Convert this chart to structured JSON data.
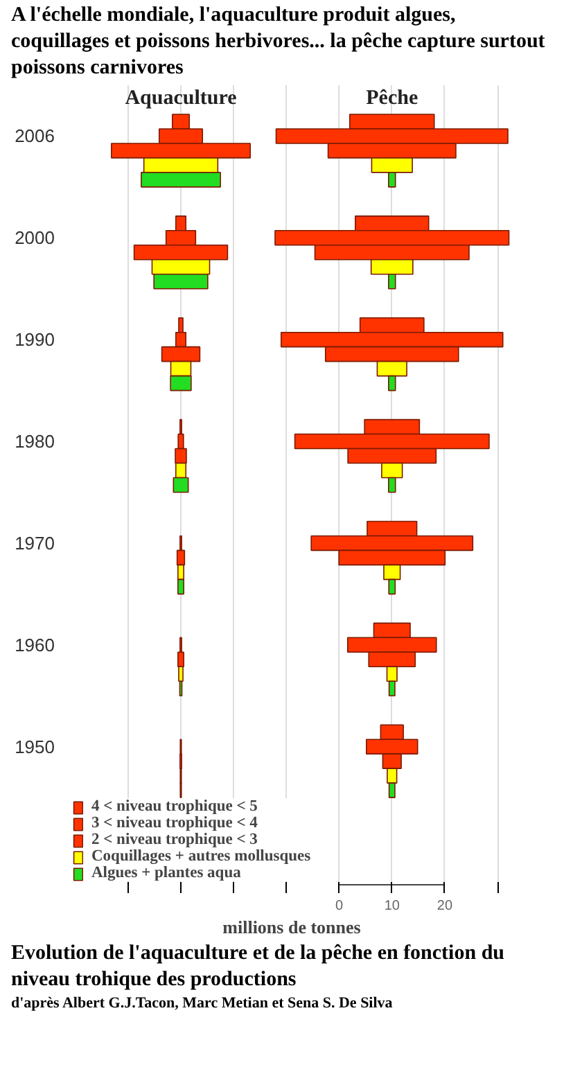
{
  "chart_data": {
    "type": "bar",
    "orientation": "horizontal",
    "title": "A l'échelle mondiale, l'aquaculture produit algues, coquillages et poissons herbivores... la pêche capture surtout poissons carnivores",
    "xlabel": "millions de tonnes",
    "categories": [
      null,
      null,
      null,
      "2006",
      null,
      null,
      null,
      null,
      null,
      null,
      "2000",
      null,
      null,
      null,
      null,
      null,
      null,
      "1990",
      null,
      null,
      null,
      null,
      null,
      null,
      "1980",
      null,
      null,
      null,
      null,
      null,
      null,
      "1970",
      null,
      null,
      null,
      null,
      null,
      null,
      "1960",
      null,
      null,
      null,
      null,
      null,
      null,
      "1950",
      null,
      null,
      null,
      null,
      null,
      null,
      null,
      null,
      null
    ],
    "series": [
      {
        "name": "4 < niveau trophique < 5",
        "color": "#ff3300",
        "values": [
          null,
          null,
          3.2,
          null,
          null,
          null,
          null,
          null,
          null,
          1.9,
          null,
          null,
          null,
          null,
          null,
          null,
          0.8,
          null,
          null,
          null,
          null,
          null,
          null,
          0.3,
          null,
          null,
          null,
          null,
          null,
          null,
          null,
          null,
          null,
          null,
          null,
          null,
          null,
          null,
          null,
          null,
          null,
          null,
          null,
          null,
          null,
          null,
          null,
          null,
          null,
          null,
          null,
          null,
          null,
          null,
          null
        ],
        "base": [
          null,
          null,
          -31.6,
          null,
          null,
          null,
          null,
          null,
          null,
          -30.95,
          null,
          null,
          null,
          null,
          null,
          null,
          -30.4,
          null,
          null,
          null,
          null,
          null,
          null,
          -30.15,
          null,
          null,
          null,
          null,
          null,
          null,
          null,
          null,
          null,
          null,
          null,
          null,
          null,
          null,
          null,
          null,
          null,
          null,
          null,
          null,
          null,
          null,
          null,
          null,
          null,
          null,
          null,
          null,
          null,
          null,
          null
        ]
      },
      {
        "name": "3 < niveau trophique < 4",
        "color": "#ff3300",
        "values": [
          null,
          null,
          null,
          8.2,
          null,
          null,
          null,
          null,
          null,
          null,
          5.6,
          null,
          null,
          null,
          null,
          null,
          null,
          1.9,
          null,
          null,
          null,
          null,
          null,
          null,
          1.0,
          null,
          null,
          null,
          null,
          null,
          null,
          0.3,
          null,
          null,
          null,
          null,
          null,
          null,
          0.3,
          null,
          null,
          null,
          null,
          null,
          null,
          0.2,
          null,
          null,
          null,
          null,
          null,
          null,
          null,
          null,
          null
        ],
        "base": [
          null,
          null,
          null,
          -34.1,
          null,
          null,
          null,
          null,
          null,
          null,
          -32.8,
          null,
          null,
          null,
          null,
          null,
          null,
          -30.95,
          null,
          null,
          null,
          null,
          null,
          null,
          -30.5,
          null,
          null,
          null,
          null,
          null,
          null,
          -30.15,
          null,
          null,
          null,
          null,
          null,
          null,
          -30.15,
          null,
          null,
          null,
          null,
          null,
          null,
          -30.1,
          null,
          null,
          null,
          null,
          null,
          null,
          null,
          null,
          null
        ]
      },
      {
        "name": "2 < niveau trophique < 3",
        "color": "#ff3300",
        "values": [
          null,
          null,
          null,
          null,
          26.3,
          null,
          null,
          null,
          null,
          null,
          null,
          17.7,
          null,
          null,
          null,
          null,
          null,
          null,
          7.2,
          null,
          null,
          null,
          null,
          null,
          null,
          2.1,
          null,
          null,
          null,
          null,
          null,
          null,
          1.4,
          null,
          null,
          null,
          null,
          null,
          null,
          1.1,
          null,
          null,
          null,
          null,
          null,
          null,
          0.3,
          null,
          null,
          null,
          null,
          null,
          null,
          null,
          null
        ],
        "base": [
          null,
          null,
          null,
          null,
          -43.15,
          null,
          null,
          null,
          null,
          null,
          null,
          -38.85,
          null,
          null,
          null,
          null,
          null,
          null,
          -33.6,
          null,
          null,
          null,
          null,
          null,
          null,
          -31.05,
          null,
          null,
          null,
          null,
          null,
          null,
          -30.7,
          null,
          null,
          null,
          null,
          null,
          null,
          -30.55,
          null,
          null,
          null,
          null,
          null,
          null,
          -30.15,
          null,
          null,
          null,
          null,
          null,
          null,
          null,
          null
        ]
      },
      {
        "name": "Coquillages + autres mollusques",
        "color": "#ffff00",
        "values": [
          null,
          null,
          null,
          null,
          null,
          14.0,
          null,
          null,
          null,
          null,
          null,
          null,
          10.9,
          null,
          null,
          null,
          null,
          null,
          null,
          3.8,
          null,
          null,
          null,
          null,
          null,
          null,
          1.9,
          null,
          null,
          null,
          null,
          null,
          null,
          1.1,
          null,
          null,
          null,
          null,
          null,
          null,
          0.8,
          null,
          null,
          null,
          null,
          null,
          null,
          0.2,
          null,
          null,
          null,
          null,
          null,
          null,
          null
        ],
        "base": [
          null,
          null,
          null,
          null,
          null,
          -37.0,
          null,
          null,
          null,
          null,
          null,
          null,
          -35.45,
          null,
          null,
          null,
          null,
          null,
          null,
          -31.9,
          null,
          null,
          null,
          null,
          null,
          null,
          -30.95,
          null,
          null,
          null,
          null,
          null,
          null,
          -30.55,
          null,
          null,
          null,
          null,
          null,
          null,
          -30.4,
          null,
          null,
          null,
          null,
          null,
          null,
          -30.1,
          null,
          null,
          null,
          null,
          null,
          null,
          null
        ]
      },
      {
        "name": "Algues + plantes aqua",
        "color": "#22dd22",
        "values": [
          null,
          null,
          null,
          null,
          null,
          null,
          15.0,
          null,
          null,
          null,
          null,
          null,
          null,
          10.2,
          null,
          null,
          null,
          null,
          null,
          null,
          3.9,
          null,
          null,
          null,
          null,
          null,
          null,
          2.8,
          null,
          null,
          null,
          null,
          null,
          null,
          1.1,
          null,
          null,
          null,
          null,
          null,
          null,
          0.4,
          null,
          null,
          null,
          null,
          null,
          null,
          0.2,
          null,
          null,
          null,
          null,
          null,
          null
        ],
        "base": [
          null,
          null,
          null,
          null,
          null,
          null,
          -37.5,
          null,
          null,
          null,
          null,
          null,
          null,
          -35.1,
          null,
          null,
          null,
          null,
          null,
          null,
          -31.95,
          null,
          null,
          null,
          null,
          null,
          null,
          -31.4,
          null,
          null,
          null,
          null,
          null,
          null,
          -30.55,
          null,
          null,
          null,
          null,
          null,
          null,
          -30.2,
          null,
          null,
          null,
          null,
          null,
          null,
          -30.1,
          null,
          null,
          null,
          null,
          null,
          null
        ]
      },
      {
        "color": "#ff3300",
        "values": [
          null,
          null,
          16.0,
          null,
          null,
          null,
          null,
          null,
          null,
          13.9,
          null,
          null,
          null,
          null,
          null,
          null,
          12.1,
          null,
          null,
          null,
          null,
          null,
          null,
          10.4,
          null,
          null,
          null,
          null,
          null,
          null,
          9.4,
          null,
          null,
          null,
          null,
          null,
          null,
          6.9,
          null,
          null,
          null,
          null,
          null,
          null,
          4.3,
          null,
          null,
          null,
          null,
          null,
          null,
          null,
          null,
          null,
          null
        ],
        "base": [
          null,
          null,
          2.0,
          null,
          null,
          null,
          null,
          null,
          null,
          3.05,
          null,
          null,
          null,
          null,
          null,
          null,
          3.95,
          null,
          null,
          null,
          null,
          null,
          null,
          4.8,
          null,
          null,
          null,
          null,
          null,
          null,
          5.3,
          null,
          null,
          null,
          null,
          null,
          null,
          6.55,
          null,
          null,
          null,
          null,
          null,
          null,
          7.85,
          null,
          null,
          null,
          null,
          null,
          null,
          null,
          null,
          null,
          null
        ]
      },
      {
        "color": "#ff3300",
        "values": [
          null,
          null,
          null,
          43.9,
          null,
          null,
          null,
          null,
          null,
          null,
          44.3,
          null,
          null,
          null,
          null,
          null,
          null,
          42.0,
          null,
          null,
          null,
          null,
          null,
          null,
          36.8,
          null,
          null,
          null,
          null,
          null,
          null,
          30.6,
          null,
          null,
          null,
          null,
          null,
          null,
          16.8,
          null,
          null,
          null,
          null,
          null,
          null,
          9.7,
          null,
          null,
          null,
          null,
          null,
          null,
          null,
          null,
          null
        ],
        "base": [
          null,
          null,
          null,
          -11.95,
          null,
          null,
          null,
          null,
          null,
          null,
          -12.15,
          null,
          null,
          null,
          null,
          null,
          null,
          -11.0,
          null,
          null,
          null,
          null,
          null,
          null,
          -8.4,
          null,
          null,
          null,
          null,
          null,
          null,
          -5.3,
          null,
          null,
          null,
          null,
          null,
          null,
          1.6,
          null,
          null,
          null,
          null,
          null,
          null,
          5.15,
          null,
          null,
          null,
          null,
          null,
          null,
          null,
          null,
          null
        ]
      },
      {
        "color": "#ff3300",
        "values": [
          null,
          null,
          null,
          null,
          24.2,
          null,
          null,
          null,
          null,
          null,
          null,
          29.2,
          null,
          null,
          null,
          null,
          null,
          null,
          25.2,
          null,
          null,
          null,
          null,
          null,
          null,
          16.7,
          null,
          null,
          null,
          null,
          null,
          null,
          20.1,
          null,
          null,
          null,
          null,
          null,
          null,
          8.8,
          null,
          null,
          null,
          null,
          null,
          null,
          3.5,
          null,
          null,
          null,
          null,
          null,
          null,
          null,
          null
        ],
        "base": [
          null,
          null,
          null,
          null,
          -2.1,
          null,
          null,
          null,
          null,
          null,
          null,
          -4.6,
          null,
          null,
          null,
          null,
          null,
          null,
          -2.6,
          null,
          null,
          null,
          null,
          null,
          null,
          1.65,
          null,
          null,
          null,
          null,
          null,
          null,
          -0.05,
          null,
          null,
          null,
          null,
          null,
          null,
          5.6,
          null,
          null,
          null,
          null,
          null,
          null,
          8.25,
          null,
          null,
          null,
          null,
          null,
          null,
          null,
          null
        ]
      },
      {
        "color": "#ffff00",
        "values": [
          null,
          null,
          null,
          null,
          null,
          7.7,
          null,
          null,
          null,
          null,
          null,
          null,
          7.9,
          null,
          null,
          null,
          null,
          null,
          null,
          5.6,
          null,
          null,
          null,
          null,
          null,
          null,
          3.9,
          null,
          null,
          null,
          null,
          null,
          null,
          3.1,
          null,
          null,
          null,
          null,
          null,
          null,
          1.9,
          null,
          null,
          null,
          null,
          null,
          null,
          1.8,
          null,
          null,
          null,
          null,
          null,
          null,
          null
        ],
        "base": [
          null,
          null,
          null,
          null,
          null,
          6.15,
          null,
          null,
          null,
          null,
          null,
          null,
          6.05,
          null,
          null,
          null,
          null,
          null,
          null,
          7.2,
          null,
          null,
          null,
          null,
          null,
          null,
          8.05,
          null,
          null,
          null,
          null,
          null,
          null,
          8.45,
          null,
          null,
          null,
          null,
          null,
          null,
          9.05,
          null,
          null,
          null,
          null,
          null,
          null,
          9.1,
          null,
          null,
          null,
          null,
          null,
          null,
          null
        ]
      },
      {
        "color": "#22dd22",
        "values": [
          null,
          null,
          null,
          null,
          null,
          null,
          1.3,
          null,
          null,
          null,
          null,
          null,
          null,
          1.3,
          null,
          null,
          null,
          null,
          null,
          null,
          1.3,
          null,
          null,
          null,
          null,
          null,
          null,
          1.3,
          null,
          null,
          null,
          null,
          null,
          null,
          1.2,
          null,
          null,
          null,
          null,
          null,
          null,
          1.1,
          null,
          null,
          null,
          null,
          null,
          null,
          1.1,
          null,
          null,
          null,
          null,
          null,
          null
        ],
        "base": [
          null,
          null,
          null,
          null,
          null,
          null,
          9.35,
          null,
          null,
          null,
          null,
          null,
          null,
          9.35,
          null,
          null,
          null,
          null,
          null,
          null,
          9.35,
          null,
          null,
          null,
          null,
          null,
          null,
          9.35,
          null,
          null,
          null,
          null,
          null,
          null,
          9.4,
          null,
          null,
          null,
          null,
          null,
          null,
          9.45,
          null,
          null,
          null,
          null,
          null,
          null,
          9.45,
          null,
          null,
          null,
          null,
          null,
          null
        ]
      }
    ],
    "xlim": [
      -51,
      33
    ],
    "xticks": [
      {
        "value": -40,
        "label": null
      },
      {
        "value": -30,
        "label": null
      },
      {
        "value": -20,
        "label": null
      },
      {
        "value": -10,
        "label": null
      },
      0,
      10,
      20,
      {
        "value": 30,
        "label": null
      }
    ],
    "grid": "x",
    "legend": "bottom left",
    "annotations": [
      "Aquaculture",
      "Pêche",
      "Evolution de l'aquaculture et de la pêche en fonction du niveau trohique des productions",
      "d'après Albert G.J.Tacon, Marc Metian et Sena S. De Silva"
    ]
  }
}
